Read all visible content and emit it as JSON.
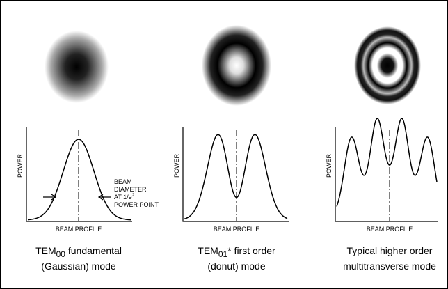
{
  "panels": [
    {
      "y_label": "POWER",
      "x_label": "BEAM PROFILE",
      "caption": {
        "main": "TEM",
        "sub": "00",
        "rest": " fundamental",
        "line2": "(Gaussian) mode"
      }
    },
    {
      "y_label": "POWER",
      "x_label": "BEAM PROFILE",
      "caption": {
        "main": "TEM",
        "sub": "01",
        "rest": "* first order",
        "line2": "(donut) mode"
      }
    },
    {
      "y_label": "POWER",
      "x_label": "BEAM PROFILE",
      "caption": {
        "rest": "Typical higher order",
        "line2": "multitransverse mode"
      }
    }
  ],
  "annotation": {
    "lines": [
      "BEAM",
      "DIAMETER",
      "AT 1/e",
      "POWER POINT"
    ],
    "sup": "2"
  }
}
